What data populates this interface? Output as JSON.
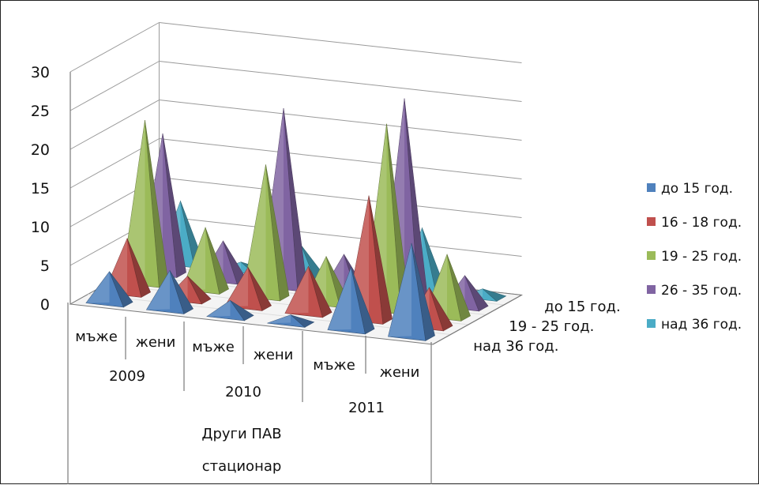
{
  "chart_data": {
    "type": "bar",
    "subtype": "3d-pyramid",
    "y_ticks": [
      "0",
      "5",
      "10",
      "15",
      "20",
      "25",
      "30"
    ],
    "ylim": [
      0,
      30
    ],
    "grid": true,
    "legend_position": "right",
    "categories": [
      {
        "sex": "мъже",
        "year": "2009"
      },
      {
        "sex": "жени",
        "year": "2009"
      },
      {
        "sex": "мъже",
        "year": "2010"
      },
      {
        "sex": "жени",
        "year": "2010"
      },
      {
        "sex": "мъже",
        "year": "2011"
      },
      {
        "sex": "жени",
        "year": "2011"
      }
    ],
    "group_labels": [
      "2009",
      "2010",
      "2011"
    ],
    "category_group_label": "Други ПАВ",
    "category_outer_label": "стационар",
    "depth_labels": [
      "до 15 год.",
      "19 - 25 год.",
      "над 36 год."
    ],
    "series": [
      {
        "name": "до 15 год.",
        "color": "#4f81bd",
        "values": [
          4,
          5,
          2,
          1,
          8,
          12
        ]
      },
      {
        "name": "16 - 18 год.",
        "color": "#c0504d",
        "values": [
          7,
          3,
          5,
          6,
          16,
          5
        ]
      },
      {
        "name": "19 - 25 год.",
        "color": "#9bbb59",
        "values": [
          21,
          8,
          17,
          6,
          24,
          8
        ]
      },
      {
        "name": "26 - 35 год.",
        "color": "#8064a2",
        "values": [
          18,
          5,
          23,
          5,
          26,
          4
        ]
      },
      {
        "name": "над 36 год.",
        "color": "#4bacc6",
        "values": [
          8,
          1,
          4,
          1,
          8,
          1
        ]
      }
    ]
  }
}
